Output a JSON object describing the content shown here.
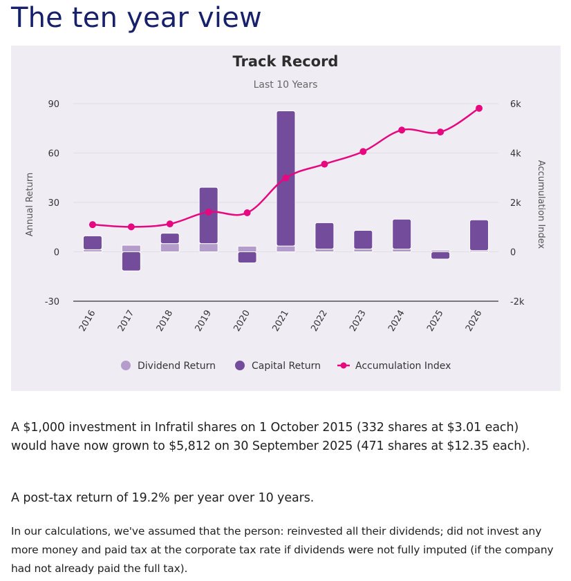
{
  "page": {
    "title": "The ten year view",
    "paragraphs": [
      "A $1,000 investment in Infratil shares on 1 October 2015 (332 shares at $3.01 each) would have now grown to $5,812 on 30 September 2025 (471 shares at $12.35 each).",
      "A post-tax return of 19.2% per year over 10 years.",
      "In our calculations, we've assumed that the person: reinvested all their dividends; did not invest any more money and paid tax at the corporate tax rate if dividends were not fully imputed (if the company had not already paid the full tax)."
    ]
  },
  "chart_data": {
    "type": "bar",
    "title": "Track Record",
    "subtitle": "Last 10 Years",
    "categories": [
      "2016",
      "2017",
      "2018",
      "2019",
      "2020",
      "2021",
      "2022",
      "2023",
      "2024",
      "2025",
      "2026"
    ],
    "series": [
      {
        "name": "Dividend Return",
        "type": "bar",
        "stacked": true,
        "axis": "left",
        "color": "#b49dcb",
        "values": [
          1.3,
          4.0,
          5.0,
          5.0,
          3.4,
          3.5,
          1.7,
          1.7,
          1.7,
          1.0,
          0.8
        ]
      },
      {
        "name": "Capital Return",
        "type": "bar",
        "stacked": true,
        "axis": "left",
        "color": "#744c9c",
        "values": [
          8.4,
          -11.6,
          6.3,
          34.2,
          -6.7,
          82.1,
          16.0,
          11.3,
          18.1,
          -4.4,
          18.6
        ]
      },
      {
        "name": "Accumulation Index",
        "type": "line",
        "axis": "right",
        "color": "#e6087f",
        "values": [
          1100,
          1010,
          1130,
          1610,
          1580,
          2990,
          3550,
          4060,
          4930,
          4850,
          5812
        ]
      }
    ],
    "xlabel": "",
    "ylabel": "Annual Return",
    "y2label": "Accumulation Index",
    "ylim": [
      -30,
      90
    ],
    "y2lim": [
      -2000,
      6000
    ],
    "yticks": [
      "-30",
      "0",
      "30",
      "60",
      "90"
    ],
    "yticks_values": [
      -30,
      0,
      30,
      60,
      90
    ],
    "y2ticks": [
      "-2k",
      "0",
      "2k",
      "4k",
      "6k"
    ],
    "grid": true,
    "legend": "bottom-center"
  }
}
